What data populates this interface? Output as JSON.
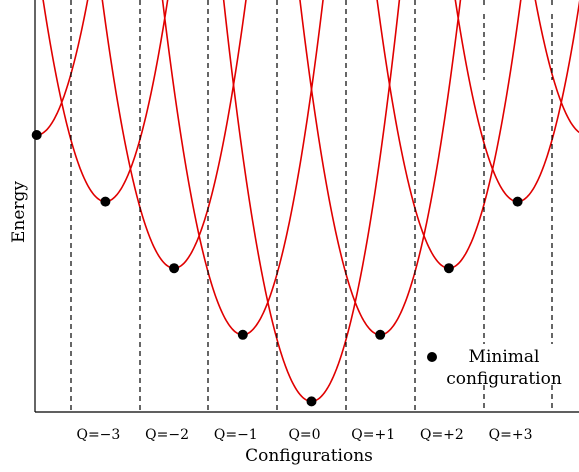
{
  "chart_data": {
    "type": "line",
    "title": "",
    "xlabel": "Configurations",
    "ylabel": "Energy",
    "categories": [
      "Q=−3",
      "Q=−2",
      "Q=−1",
      "Q=0",
      "Q=+1",
      "Q=+2",
      "Q=+3"
    ],
    "minima": [
      {
        "q": -4,
        "energy": 4
      },
      {
        "q": -3,
        "energy": 3
      },
      {
        "q": -2,
        "energy": 2
      },
      {
        "q": -1,
        "energy": 1
      },
      {
        "q": 0,
        "energy": 0
      },
      {
        "q": 1,
        "energy": 1
      },
      {
        "q": 2,
        "energy": 2
      },
      {
        "q": 3,
        "energy": 3
      }
    ],
    "grid": false,
    "legend": {
      "label": "Minimal configuration",
      "line1": "Minimal",
      "line2": "configuration",
      "position": "bottom-right"
    },
    "colors": {
      "curve": "#e00000",
      "minima": "#000000",
      "dividers": "#000000"
    }
  }
}
